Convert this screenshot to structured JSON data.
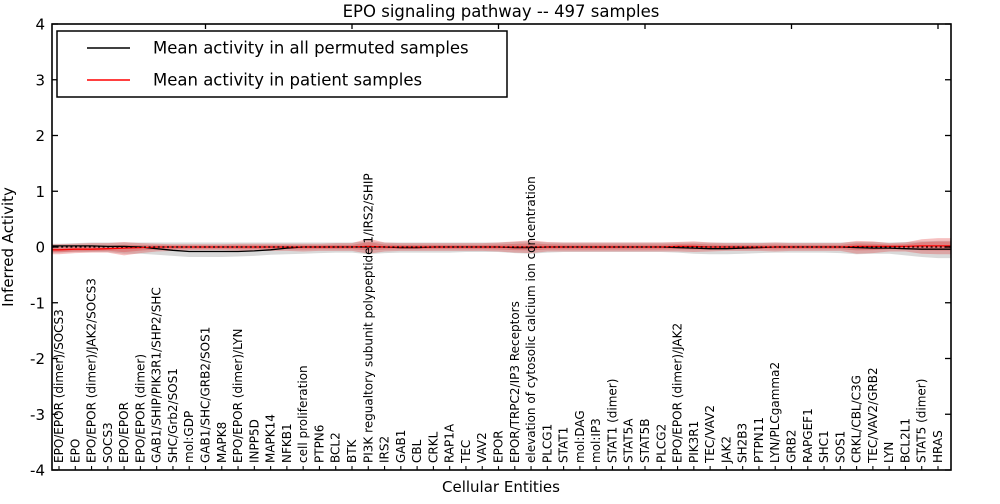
{
  "title": "EPO signaling pathway -- 497 samples",
  "axes": {
    "x_label": "Cellular Entities",
    "y_label": "Inferred Activity",
    "y_ticks": [
      "4",
      "3",
      "2",
      "1",
      "0",
      "-1",
      "-2",
      "-3",
      "-4"
    ]
  },
  "legend": {
    "items": [
      {
        "label": "Mean activity in all permuted samples",
        "color": "#000000"
      },
      {
        "label": "Mean activity in patient samples",
        "color": "#ff0000"
      }
    ]
  },
  "chart_data": {
    "type": "line",
    "title": "EPO signaling pathway -- 497 samples",
    "xlabel": "Cellular Entities",
    "ylabel": "Inferred Activity",
    "ylim": [
      -4,
      4
    ],
    "grid": false,
    "legend_position": "upper left",
    "zero_line_style": "dotted",
    "categories": [
      "EPO/EPOR (dimer)/SOCS3",
      "EPO",
      "EPO/EPOR (dimer)/JAK2/SOCS3",
      "SOCS3",
      "EPO/EPOR",
      "EPO/EPOR (dimer)",
      "GAB1/SHIP/PIK3R1/SHP2/SHC",
      "SHC/Grb2/SOS1",
      "mol:GDP",
      "GAB1/SHC/GRB2/SOS1",
      "MAPK8",
      "EPO/EPOR (dimer)/LYN",
      "INPP5D",
      "MAPK14",
      "NFKB1",
      "cell proliferation",
      "PTPN6",
      "BCL2",
      "BTK",
      "PI3K regualtory subunit polypeptide 1/IRS2/SHIP",
      "IRS2",
      "GAB1",
      "CBL",
      "CRKL",
      "RAP1A",
      "TEC",
      "VAV2",
      "EPOR",
      "EPOR/TRPC2/IP3 Receptors",
      "elevation of cytosolic calcium ion concentration",
      "PLCG1",
      "STAT1",
      "mol:DAG",
      "mol:IP3",
      "STAT1 (dimer)",
      "STAT5A",
      "STAT5B",
      "PLCG2",
      "EPO/EPOR (dimer)/JAK2",
      "PIK3R1",
      "TEC/VAV2",
      "JAK2",
      "SH2B3",
      "PTPN11",
      "LYN/PLCgamma2",
      "GRB2",
      "RAPGEF1",
      "SHC1",
      "SOS1",
      "CRKL/CBL/C3G",
      "TEC/VAV2/GRB2",
      "LYN",
      "BCL2L1",
      "STAT5 (dimer)",
      "HRAS"
    ],
    "series": [
      {
        "name": "Mean activity in all permuted samples",
        "color": "#000000",
        "style": "solid",
        "values": [
          0.02,
          0.02,
          0.02,
          0.01,
          0.01,
          0.0,
          -0.03,
          -0.06,
          -0.08,
          -0.08,
          -0.08,
          -0.08,
          -0.07,
          -0.05,
          -0.02,
          0.0,
          0.0,
          0.0,
          0.0,
          0.0,
          0.0,
          -0.01,
          -0.01,
          0.0,
          0.0,
          0.0,
          0.0,
          0.0,
          -0.01,
          -0.01,
          0.0,
          0.0,
          0.0,
          0.0,
          0.0,
          0.0,
          0.0,
          0.0,
          -0.01,
          -0.02,
          -0.03,
          -0.03,
          -0.02,
          -0.01,
          0.0,
          0.0,
          0.0,
          0.0,
          0.0,
          -0.01,
          -0.02,
          -0.02,
          -0.03,
          -0.04,
          -0.04
        ]
      },
      {
        "name": "Mean activity in patient samples",
        "color": "#ff0000",
        "style": "solid",
        "values": [
          -0.05,
          -0.04,
          -0.04,
          -0.03,
          -0.02,
          -0.01,
          0.0,
          0.0,
          0.0,
          0.0,
          0.0,
          0.0,
          0.0,
          0.0,
          0.0,
          0.0,
          0.0,
          0.0,
          0.0,
          0.01,
          0.0,
          0.0,
          0.0,
          0.0,
          0.0,
          0.0,
          0.0,
          0.0,
          0.0,
          0.0,
          0.0,
          0.0,
          0.0,
          0.0,
          0.0,
          0.0,
          0.0,
          0.0,
          0.01,
          0.01,
          0.0,
          0.0,
          0.0,
          0.0,
          0.0,
          0.0,
          0.0,
          0.0,
          0.0,
          0.01,
          0.01,
          0.01,
          0.01,
          0.02,
          0.02
        ]
      }
    ],
    "bands": [
      {
        "name": "permuted-samples-range",
        "color": "#aaaaaa",
        "opacity": 0.45,
        "upper": [
          0.06,
          0.07,
          0.08,
          0.08,
          0.08,
          0.08,
          0.08,
          0.08,
          0.08,
          0.08,
          0.08,
          0.08,
          0.08,
          0.08,
          0.08,
          0.08,
          0.08,
          0.08,
          0.08,
          0.1,
          0.08,
          0.08,
          0.08,
          0.08,
          0.08,
          0.08,
          0.08,
          0.08,
          0.09,
          0.1,
          0.08,
          0.08,
          0.08,
          0.08,
          0.08,
          0.08,
          0.08,
          0.08,
          0.08,
          0.08,
          0.08,
          0.08,
          0.08,
          0.08,
          0.08,
          0.08,
          0.08,
          0.08,
          0.08,
          0.09,
          0.09,
          0.08,
          0.09,
          0.1,
          0.11
        ],
        "lower": [
          -0.1,
          -0.09,
          -0.09,
          -0.09,
          -0.12,
          -0.12,
          -0.14,
          -0.16,
          -0.18,
          -0.18,
          -0.18,
          -0.17,
          -0.16,
          -0.14,
          -0.13,
          -0.12,
          -0.11,
          -0.1,
          -0.1,
          -0.13,
          -0.11,
          -0.1,
          -0.1,
          -0.1,
          -0.1,
          -0.09,
          -0.09,
          -0.09,
          -0.11,
          -0.12,
          -0.1,
          -0.09,
          -0.09,
          -0.09,
          -0.09,
          -0.09,
          -0.09,
          -0.09,
          -0.1,
          -0.12,
          -0.13,
          -0.13,
          -0.12,
          -0.11,
          -0.1,
          -0.1,
          -0.1,
          -0.1,
          -0.11,
          -0.13,
          -0.12,
          -0.12,
          -0.15,
          -0.18,
          -0.2
        ]
      },
      {
        "name": "patient-samples-range",
        "color": "#e03030",
        "opacity": 0.3,
        "upper": [
          0.05,
          0.06,
          0.07,
          0.07,
          0.09,
          0.07,
          0.06,
          0.05,
          0.05,
          0.05,
          0.05,
          0.06,
          0.06,
          0.06,
          0.06,
          0.06,
          0.06,
          0.07,
          0.07,
          0.15,
          0.08,
          0.07,
          0.07,
          0.07,
          0.07,
          0.07,
          0.07,
          0.08,
          0.1,
          0.12,
          0.09,
          0.08,
          0.08,
          0.08,
          0.08,
          0.08,
          0.08,
          0.08,
          0.09,
          0.1,
          0.08,
          0.07,
          0.07,
          0.07,
          0.08,
          0.07,
          0.07,
          0.07,
          0.07,
          0.11,
          0.1,
          0.07,
          0.08,
          0.14,
          0.16
        ],
        "lower": [
          -0.13,
          -0.11,
          -0.1,
          -0.1,
          -0.15,
          -0.11,
          -0.08,
          -0.07,
          -0.06,
          -0.06,
          -0.06,
          -0.07,
          -0.07,
          -0.07,
          -0.07,
          -0.08,
          -0.07,
          -0.07,
          -0.07,
          -0.12,
          -0.08,
          -0.07,
          -0.07,
          -0.07,
          -0.07,
          -0.07,
          -0.07,
          -0.08,
          -0.1,
          -0.11,
          -0.08,
          -0.08,
          -0.08,
          -0.08,
          -0.08,
          -0.08,
          -0.08,
          -0.08,
          -0.08,
          -0.09,
          -0.08,
          -0.07,
          -0.07,
          -0.07,
          -0.08,
          -0.07,
          -0.07,
          -0.07,
          -0.07,
          -0.12,
          -0.11,
          -0.08,
          -0.08,
          -0.12,
          -0.13
        ]
      }
    ]
  }
}
